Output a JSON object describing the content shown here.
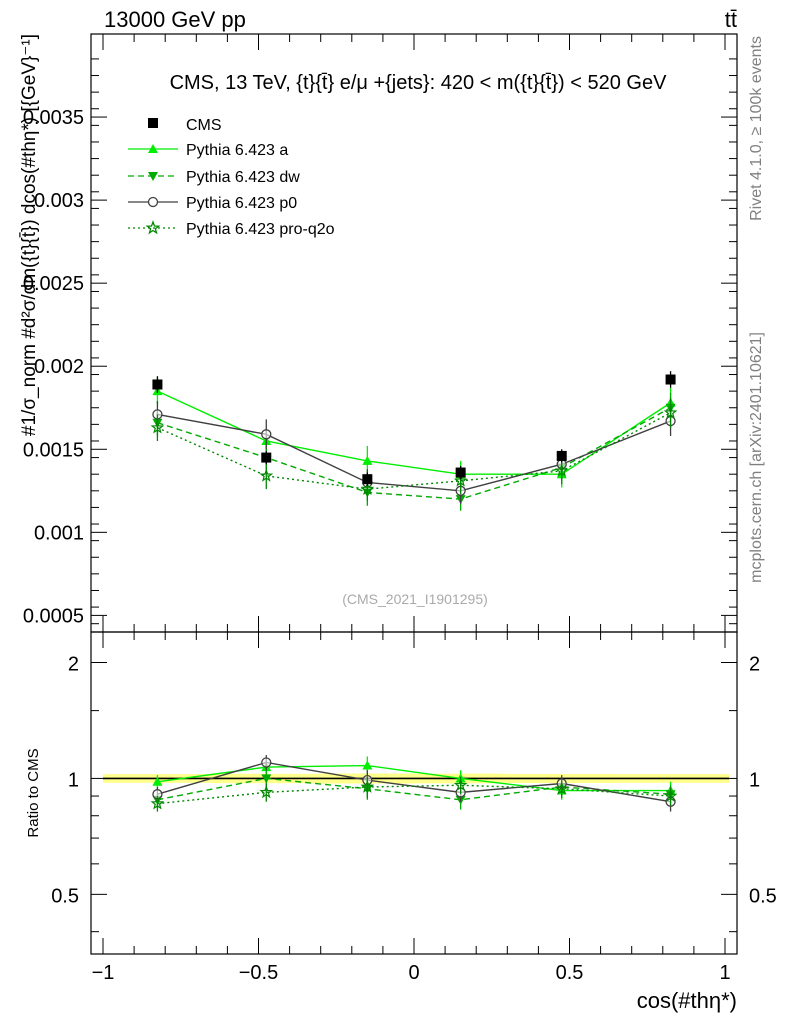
{
  "header": {
    "energy_label": "13000 GeV pp",
    "process_label": "tt̄"
  },
  "side_labels": {
    "rivet": "Rivet 4.1.0, ≥ 100k events",
    "mcplots": "mcplots.cern.ch [arXiv:2401.10621]"
  },
  "chart_data": [
    {
      "type": "line",
      "title": "CMS, 13 TeV, {t}{t̄} e/μ +{jets}: 420 < m({t}{t̄}) < 520 GeV",
      "watermark": "(CMS_2021_I1901295)",
      "ylabel": "#1/σ_norm #d²σ/dm({t}{t̄}) dcos(#thη*) [{GeV}⁻¹]",
      "xlim": [
        -1.0,
        1.0
      ],
      "ylim": [
        0.0004,
        0.004
      ],
      "yticks": [
        0.0005,
        0.001,
        0.0015,
        0.002,
        0.0025,
        0.003,
        0.0035
      ],
      "ytick_labels": [
        "0.0005",
        "0.001",
        "0.0015",
        "0.002",
        "0.0025",
        "0.003",
        "0.0035"
      ],
      "x": [
        -0.825,
        -0.475,
        -0.15,
        0.15,
        0.475,
        0.825
      ],
      "x_edges": [
        -1.0,
        -0.65,
        -0.3,
        0.0,
        0.3,
        0.65,
        1.0
      ],
      "data": {
        "name": "CMS",
        "values": [
          0.00189,
          0.00145,
          0.00132,
          0.00136,
          0.00146,
          0.00192
        ],
        "errors": [
          5e-05,
          4e-05,
          4e-05,
          4e-05,
          4e-05,
          5e-05
        ]
      },
      "series": [
        {
          "name": "Pythia 6.423 a",
          "color": "#00ee00",
          "dash": "",
          "marker": "triangle-up",
          "values": [
            0.00185,
            0.00155,
            0.00143,
            0.00135,
            0.00135,
            0.00178
          ],
          "errors": [
            8e-05,
            8e-05,
            9e-05,
            8e-05,
            8e-05,
            9e-05
          ]
        },
        {
          "name": "Pythia 6.423 dw",
          "color": "#00aa00",
          "dash": "6,4",
          "marker": "triangle-down",
          "values": [
            0.00166,
            0.00145,
            0.00124,
            0.0012,
            0.00139,
            0.00175
          ],
          "errors": [
            8e-05,
            8e-05,
            8e-05,
            7e-05,
            8e-05,
            9e-05
          ]
        },
        {
          "name": "Pythia 6.423 p0",
          "color": "#404040",
          "dash": "",
          "marker": "circle-open",
          "values": [
            0.00171,
            0.00159,
            0.0013,
            0.00125,
            0.00141,
            0.00167
          ],
          "errors": [
            8e-05,
            9e-05,
            8e-05,
            8e-05,
            8e-05,
            9e-05
          ]
        },
        {
          "name": "Pythia 6.423 pro-q2o",
          "color": "#008800",
          "dash": "2,3",
          "marker": "star-open",
          "values": [
            0.00163,
            0.00134,
            0.00126,
            0.00131,
            0.00137,
            0.00172
          ],
          "errors": [
            8e-05,
            8e-05,
            7e-05,
            8e-05,
            8e-05,
            9e-05
          ]
        }
      ]
    },
    {
      "type": "line",
      "title": "",
      "ylabel": "Ratio to CMS",
      "xlabel": "cos(#thη*)",
      "xlim": [
        -1.0,
        1.0
      ],
      "ylim": [
        0.35,
        2.4
      ],
      "log_y": true,
      "yticks": [
        0.5,
        1,
        2
      ],
      "ytick_labels": [
        "0.5",
        "1",
        "2"
      ],
      "xticks": [
        -1,
        -0.5,
        0,
        0.5,
        1
      ],
      "xtick_labels": [
        "−1",
        "−0.5",
        "0",
        "0.5",
        "1"
      ],
      "x": [
        -0.825,
        -0.475,
        -0.15,
        0.15,
        0.475,
        0.825
      ],
      "x_edges": [
        -1.0,
        -0.65,
        -0.3,
        0.0,
        0.3,
        0.65,
        1.0
      ],
      "band_rel_err": [
        0.026,
        0.028,
        0.03,
        0.029,
        0.027,
        0.026
      ],
      "series": [
        {
          "name": "Pythia 6.423 a",
          "color": "#00ee00",
          "dash": "",
          "marker": "triangle-up",
          "values": [
            0.98,
            1.07,
            1.08,
            1.0,
            0.93,
            0.93
          ],
          "errors": [
            0.04,
            0.05,
            0.06,
            0.05,
            0.05,
            0.05
          ]
        },
        {
          "name": "Pythia 6.423 dw",
          "color": "#00aa00",
          "dash": "6,4",
          "marker": "triangle-down",
          "values": [
            0.88,
            1.0,
            0.94,
            0.88,
            0.95,
            0.91
          ],
          "errors": [
            0.04,
            0.05,
            0.06,
            0.05,
            0.05,
            0.05
          ]
        },
        {
          "name": "Pythia 6.423 p0",
          "color": "#404040",
          "dash": "",
          "marker": "circle-open",
          "values": [
            0.91,
            1.1,
            0.99,
            0.92,
            0.97,
            0.87
          ],
          "errors": [
            0.04,
            0.05,
            0.06,
            0.05,
            0.05,
            0.05
          ]
        },
        {
          "name": "Pythia 6.423 pro-q2o",
          "color": "#008800",
          "dash": "2,3",
          "marker": "star-open",
          "values": [
            0.86,
            0.92,
            0.95,
            0.96,
            0.94,
            0.9
          ],
          "errors": [
            0.04,
            0.05,
            0.06,
            0.05,
            0.05,
            0.05
          ]
        }
      ]
    }
  ]
}
